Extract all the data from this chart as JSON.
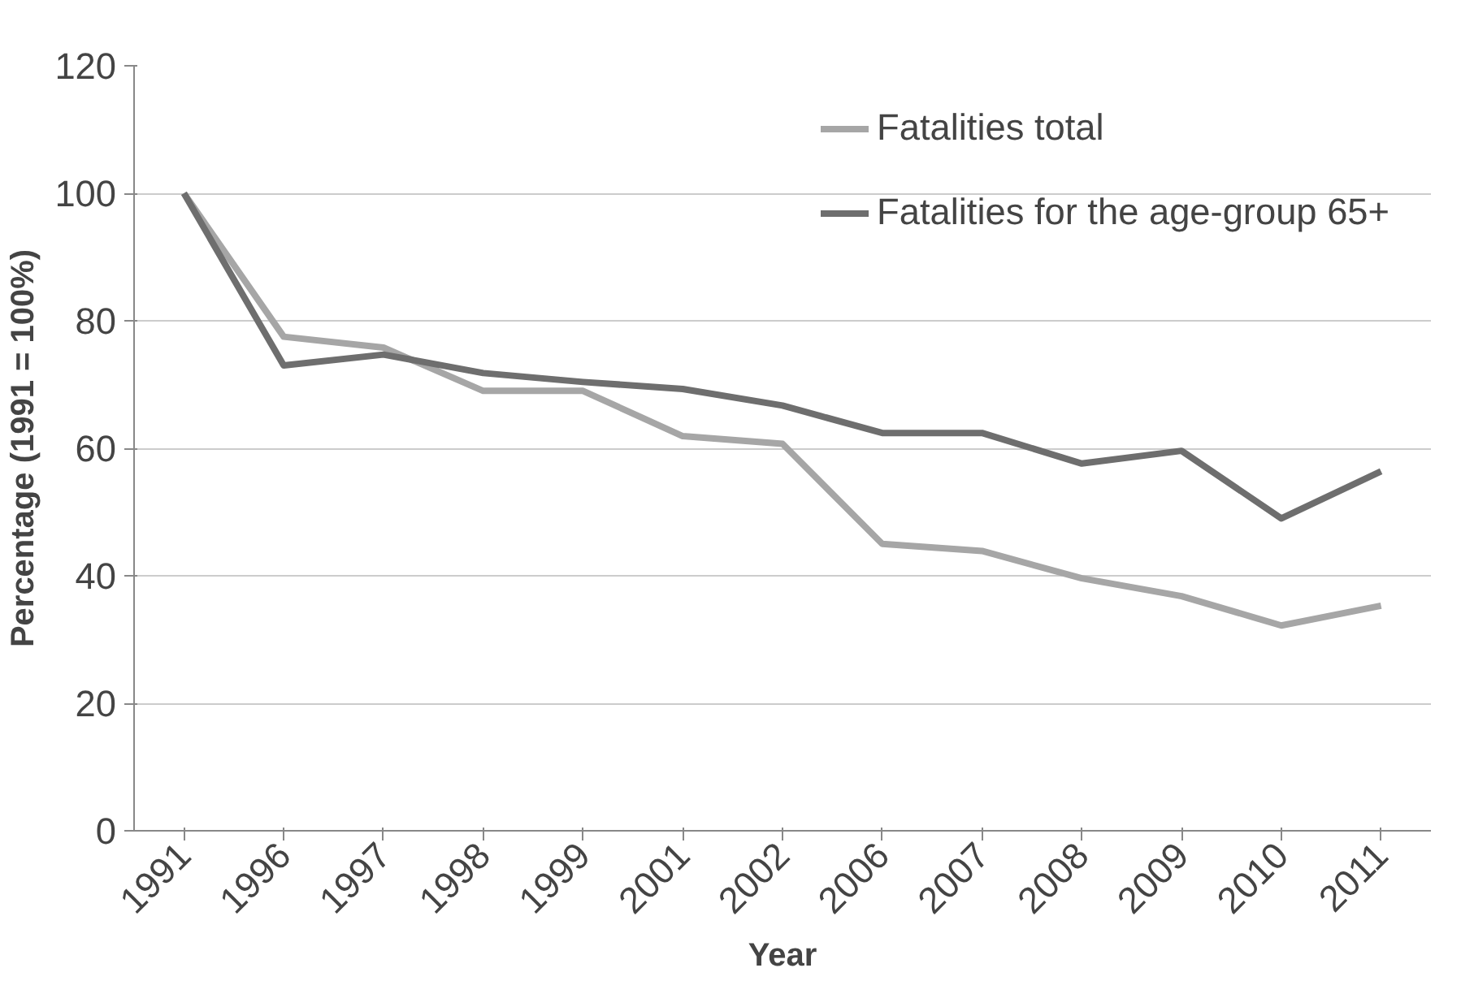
{
  "chart_data": {
    "type": "line",
    "xlabel": "Year",
    "ylabel": "Percentage (1991 = 100%)",
    "categories": [
      "1991",
      "1996",
      "1997",
      "1998",
      "1999",
      "2001",
      "2002",
      "2006",
      "2007",
      "2008",
      "2009",
      "2010",
      "2011"
    ],
    "series": [
      {
        "name": "Fatalities total",
        "color": "#a6a6a6",
        "values": [
          100,
          77.5,
          75.8,
          69,
          69,
          61.9,
          60.7,
          45,
          43.9,
          39.6,
          36.8,
          32.2,
          35.3
        ]
      },
      {
        "name": "Fatalities for the age-group 65+",
        "color": "#6e6e6e",
        "values": [
          100,
          73,
          74.7,
          71.8,
          70.4,
          69.3,
          66.7,
          62.4,
          62.4,
          57.6,
          59.6,
          49,
          56.4
        ]
      }
    ],
    "ylim": [
      0,
      120
    ],
    "yticks": [
      0,
      20,
      40,
      60,
      80,
      100,
      120
    ],
    "grid": "y",
    "legend": "top right",
    "marker": "none",
    "line_style": "solid"
  }
}
